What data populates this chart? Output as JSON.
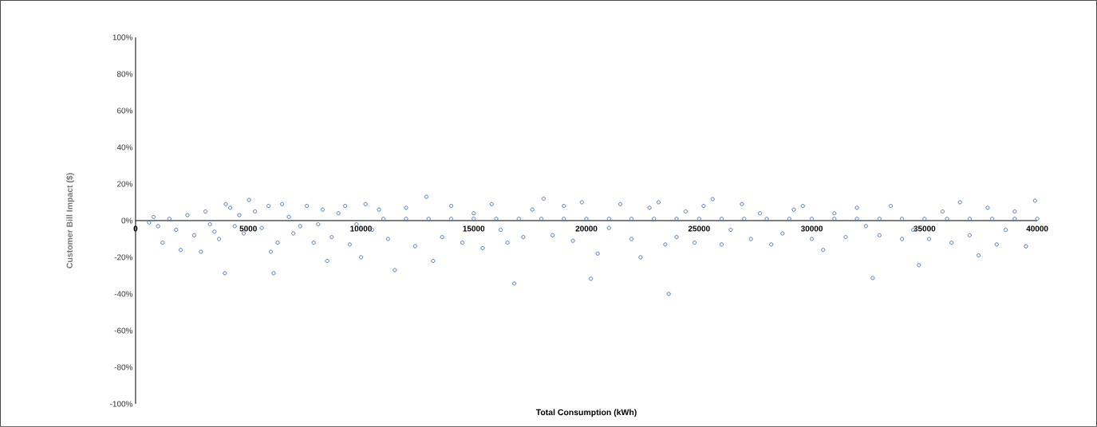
{
  "chart_data": {
    "type": "scatter",
    "xlabel": "Total Consumption (kWh)",
    "ylabel": "Customer Bill Impact ($)",
    "xlim": [
      0,
      40000
    ],
    "ylim": [
      -100,
      100
    ],
    "xticks": [
      0,
      5000,
      10000,
      15000,
      20000,
      25000,
      30000,
      35000,
      40000
    ],
    "yticks": [
      {
        "value": -100,
        "label": "-100%"
      },
      {
        "value": -80,
        "label": "-80%"
      },
      {
        "value": -60,
        "label": "-60%"
      },
      {
        "value": -40,
        "label": "-40%"
      },
      {
        "value": -20,
        "label": "-20%"
      },
      {
        "value": 0,
        "label": "0%"
      },
      {
        "value": 20,
        "label": "20%"
      },
      {
        "value": 40,
        "label": "40%"
      },
      {
        "value": 60,
        "label": "60%"
      },
      {
        "value": 80,
        "label": "80%"
      },
      {
        "value": 100,
        "label": "100%"
      }
    ],
    "marker": "circle",
    "grid": false,
    "series": [
      {
        "color": "#4472c4",
        "x": [
          600,
          800,
          1000,
          1200,
          1500,
          1800,
          2000,
          2300,
          2600,
          2900,
          3100,
          3300,
          3500,
          3700,
          3960,
          4000,
          4200,
          4400,
          4600,
          4800,
          5030,
          5300,
          5600,
          5900,
          6125,
          6000,
          6300,
          6500,
          6800,
          7000,
          7300,
          7600,
          7900,
          8100,
          8300,
          8500,
          8700,
          9000,
          9300,
          9500,
          9800,
          10000,
          10200,
          10500,
          10800,
          11500,
          11200,
          12000,
          12400,
          12900,
          13200,
          13600,
          14000,
          14500,
          15000,
          15400,
          15800,
          16200,
          16800,
          16500,
          17200,
          17600,
          18100,
          18500,
          19000,
          19400,
          19800,
          20200,
          20500,
          21000,
          21500,
          22000,
          22400,
          22800,
          23200,
          23650,
          23500,
          24000,
          24400,
          24800,
          25200,
          25600,
          26000,
          26400,
          26900,
          27300,
          27700,
          28200,
          28700,
          29200,
          29600,
          30000,
          30500,
          31000,
          31500,
          32000,
          32700,
          32400,
          33000,
          33500,
          34000,
          34750,
          34500,
          35200,
          35800,
          36570,
          36200,
          37000,
          37400,
          37800,
          38200,
          38600,
          39000,
          39500,
          39900,
          11000,
          12000,
          13000,
          14000,
          15000,
          16000,
          17000,
          18000,
          19000,
          20000,
          21000,
          22000,
          23000,
          24000,
          25000,
          26000,
          27000,
          28000,
          29000,
          30000,
          31000,
          32000,
          33000,
          34000,
          35000,
          36000,
          37000,
          38000,
          39000,
          40000
        ],
        "values": [
          -1,
          2,
          -3,
          -12,
          1,
          -5,
          -16,
          3,
          -8,
          -17,
          5,
          -2,
          -6,
          -10,
          -28.7,
          9,
          7,
          -3,
          3,
          -7,
          11.3,
          5,
          -4,
          8,
          -28.7,
          -17,
          -12,
          9,
          2,
          -7,
          -3,
          8,
          -12,
          -2,
          6,
          -22,
          -9,
          4,
          8,
          -13,
          -2,
          -20,
          9,
          -5,
          6,
          -27,
          -10,
          7,
          -14,
          13,
          -22,
          -9,
          8,
          -12,
          4,
          -15,
          9,
          -5,
          -34.3,
          -12,
          -9,
          6,
          12,
          -8,
          8,
          -11,
          10,
          -31.7,
          -18,
          -4,
          9,
          -10,
          -20,
          7,
          10,
          -40,
          -13,
          -9,
          5,
          -12,
          8,
          11.7,
          -13,
          -5,
          9,
          -10,
          4,
          -13,
          -7,
          6,
          8,
          -10,
          -16,
          4,
          -9,
          7,
          -31.3,
          -3,
          -8,
          8,
          -10,
          -24.3,
          -5,
          -10,
          5,
          10,
          -12,
          -8,
          -19,
          7,
          -13,
          -5,
          5,
          -14,
          10.9,
          1,
          1,
          1,
          1,
          1,
          1,
          1,
          1,
          1,
          1,
          1,
          1,
          1,
          1,
          1,
          1,
          1,
          1,
          1,
          1,
          1,
          1,
          1,
          1,
          1,
          1,
          1,
          1,
          1,
          1
        ]
      }
    ]
  }
}
